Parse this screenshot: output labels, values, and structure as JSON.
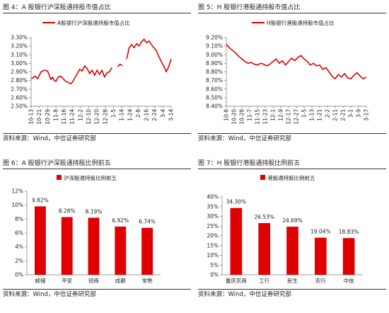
{
  "colors": {
    "accent": "#e00000",
    "axis": "#777777"
  },
  "panels": [
    {
      "title": "图 4：A 股银行沪深股通持股市值占比",
      "source": "资料来源：Wind，中信证券研究部"
    },
    {
      "title": "图 5：H 股银行港股通持股市值占比",
      "source": "资料来源：Wind，中信证券研究部"
    },
    {
      "title": "图 6：A 股银行沪深股通持股比例前五",
      "source": "资料来源：Wind，中信证券研究部"
    },
    {
      "title": "图 7：H 股银行港股通持股比例前五",
      "source": "资料来源：Wind，中信证券研究部"
    }
  ],
  "chart_data": [
    {
      "type": "line",
      "legend": "A股银行沪深股通持股市值占比",
      "legend_position": "top",
      "grid": false,
      "ylim": [
        2.5,
        3.3
      ],
      "yticks": [
        "3.30%",
        "3.20%",
        "3.10%",
        "3.00%",
        "2.90%",
        "2.80%",
        "2.70%",
        "2.60%",
        "2.50%"
      ],
      "ytick_values": [
        3.3,
        3.2,
        3.1,
        3.0,
        2.9,
        2.8,
        2.7,
        2.6,
        2.5
      ],
      "xticks": [
        "10-13",
        "10-21",
        "10-29",
        "11-8",
        "11-16",
        "11-24",
        "12-2",
        "12-10",
        "12-20",
        "12-28",
        "1-5",
        "1-14",
        "1-24",
        "2-8",
        "2-16",
        "2-24",
        "3-4",
        "3-14"
      ],
      "series": [
        {
          "name": "A股银行沪深股通持股市值占比",
          "x": [
            0,
            0.5,
            0.8,
            1.2,
            1.6,
            2.0,
            2.4,
            2.6,
            2.8,
            3.0,
            3.3,
            3.6,
            3.9,
            4.2,
            4.5,
            4.8,
            5.0,
            5.3,
            5.6,
            5.9,
            6.2,
            6.5,
            6.8,
            7.1,
            7.4,
            7.7,
            8.0,
            8.3,
            8.6,
            8.9,
            9.2,
            9.5,
            9.8
          ],
          "values": [
            2.82,
            2.85,
            2.82,
            2.9,
            2.92,
            2.91,
            2.81,
            2.84,
            2.8,
            2.79,
            2.84,
            2.85,
            2.82,
            2.79,
            2.78,
            2.76,
            2.78,
            2.83,
            2.88,
            2.93,
            2.91,
            2.97,
            2.94,
            2.88,
            2.92,
            2.86,
            2.92,
            2.87,
            2.92,
            2.84,
            2.89,
            2.9,
            2.95
          ]
        },
        {
          "name": "A股银行沪深股通持股市值占比",
          "x": [
            10.5,
            10.8,
            11.1
          ],
          "values": [
            2.96,
            2.99,
            2.97
          ]
        },
        {
          "name": "A股银行沪深股通持股市值占比",
          "x": [
            11.6,
            11.9,
            12.2,
            12.5,
            12.8,
            13.1,
            13.4,
            13.7,
            14.0,
            14.3,
            14.6,
            14.9,
            15.2,
            15.5,
            15.8,
            16.1,
            16.4,
            16.7,
            17.0
          ],
          "values": [
            3.05,
            3.18,
            3.22,
            3.18,
            3.23,
            3.2,
            3.25,
            3.28,
            3.24,
            3.26,
            3.22,
            3.18,
            3.15,
            3.08,
            3.02,
            2.97,
            2.9,
            2.96,
            3.05
          ]
        }
      ]
    },
    {
      "type": "line",
      "legend": "H股银行港股通持股市值占比",
      "legend_position": "top",
      "grid": false,
      "ylim": [
        8.4,
        9.2
      ],
      "yticks": [
        "9.20%",
        "9.10%",
        "9.00%",
        "8.90%",
        "8.80%",
        "8.70%",
        "8.60%",
        "8.50%",
        "8.40%"
      ],
      "ytick_values": [
        9.2,
        9.1,
        9.0,
        8.9,
        8.8,
        8.7,
        8.6,
        8.5,
        8.4
      ],
      "xticks": [
        "10-8",
        "10-20",
        "10-28",
        "11-7",
        "11-15",
        "11-23",
        "12-1",
        "12-9",
        "12-17",
        "12-27",
        "1-5",
        "1-13",
        "1-21",
        "2-2",
        "2-11",
        "2-21",
        "3-1",
        "3-9",
        "3-17"
      ],
      "series": [
        {
          "name": "H股银行港股通持股市值占比",
          "x": [
            0,
            0.4,
            0.8,
            1.2,
            1.6,
            2.0,
            2.4,
            2.8,
            3.2,
            3.6,
            4.0,
            4.4,
            4.8,
            5.2,
            5.6,
            6.0,
            6.4,
            6.8,
            7.2,
            7.6,
            8.0,
            8.4,
            8.8,
            9.2,
            9.6,
            10.0,
            10.4,
            10.8,
            11.2,
            11.6,
            12.0,
            12.4,
            12.8,
            13.2,
            13.6,
            14.0,
            14.4,
            14.8,
            15.2,
            15.6,
            16.0,
            16.4,
            16.8,
            17.2,
            17.6,
            18.0
          ],
          "values": [
            9.12,
            9.08,
            9.05,
            9.02,
            8.98,
            8.95,
            8.92,
            8.9,
            8.91,
            8.89,
            8.88,
            8.9,
            8.89,
            8.87,
            8.89,
            8.92,
            8.95,
            8.9,
            8.93,
            8.88,
            8.92,
            8.96,
            8.93,
            8.97,
            8.99,
            8.95,
            8.92,
            8.88,
            8.9,
            8.87,
            8.88,
            8.83,
            8.85,
            8.8,
            8.75,
            8.72,
            8.77,
            8.74,
            8.78,
            8.73,
            8.72,
            8.76,
            8.79,
            8.75,
            8.72,
            8.74
          ]
        }
      ]
    },
    {
      "type": "bar",
      "legend": "沪深股通持股比例前五",
      "legend_position": "top-left",
      "grid": false,
      "ylim": [
        0,
        12
      ],
      "yticks": [
        "12%",
        "10%",
        "8%",
        "6%",
        "4%",
        "2%",
        "0%"
      ],
      "ytick_values": [
        12,
        10,
        8,
        6,
        4,
        2,
        0
      ],
      "categories": [
        "邮储",
        "平安",
        "招商",
        "成都",
        "常熟"
      ],
      "values": [
        9.82,
        8.28,
        8.19,
        6.92,
        6.74
      ],
      "data_labels": [
        "9.82%",
        "8.28%",
        "8.19%",
        "6.92%",
        "6.74%"
      ]
    },
    {
      "type": "bar",
      "legend": "港股通持股比例前五",
      "legend_position": "top-left",
      "grid": false,
      "ylim": [
        0,
        40
      ],
      "yticks": [
        "40%",
        "35%",
        "30%",
        "25%",
        "20%",
        "15%",
        "10%",
        "5%",
        "0%"
      ],
      "ytick_values": [
        40,
        35,
        30,
        25,
        20,
        15,
        10,
        5,
        0
      ],
      "categories": [
        "重庆农商",
        "工行",
        "民生",
        "农行",
        "中信"
      ],
      "values": [
        34.3,
        26.53,
        24.69,
        19.04,
        18.83
      ],
      "data_labels": [
        "34.30%",
        "26.53%",
        "24.69%",
        "19.04%",
        "18.83%"
      ]
    }
  ]
}
